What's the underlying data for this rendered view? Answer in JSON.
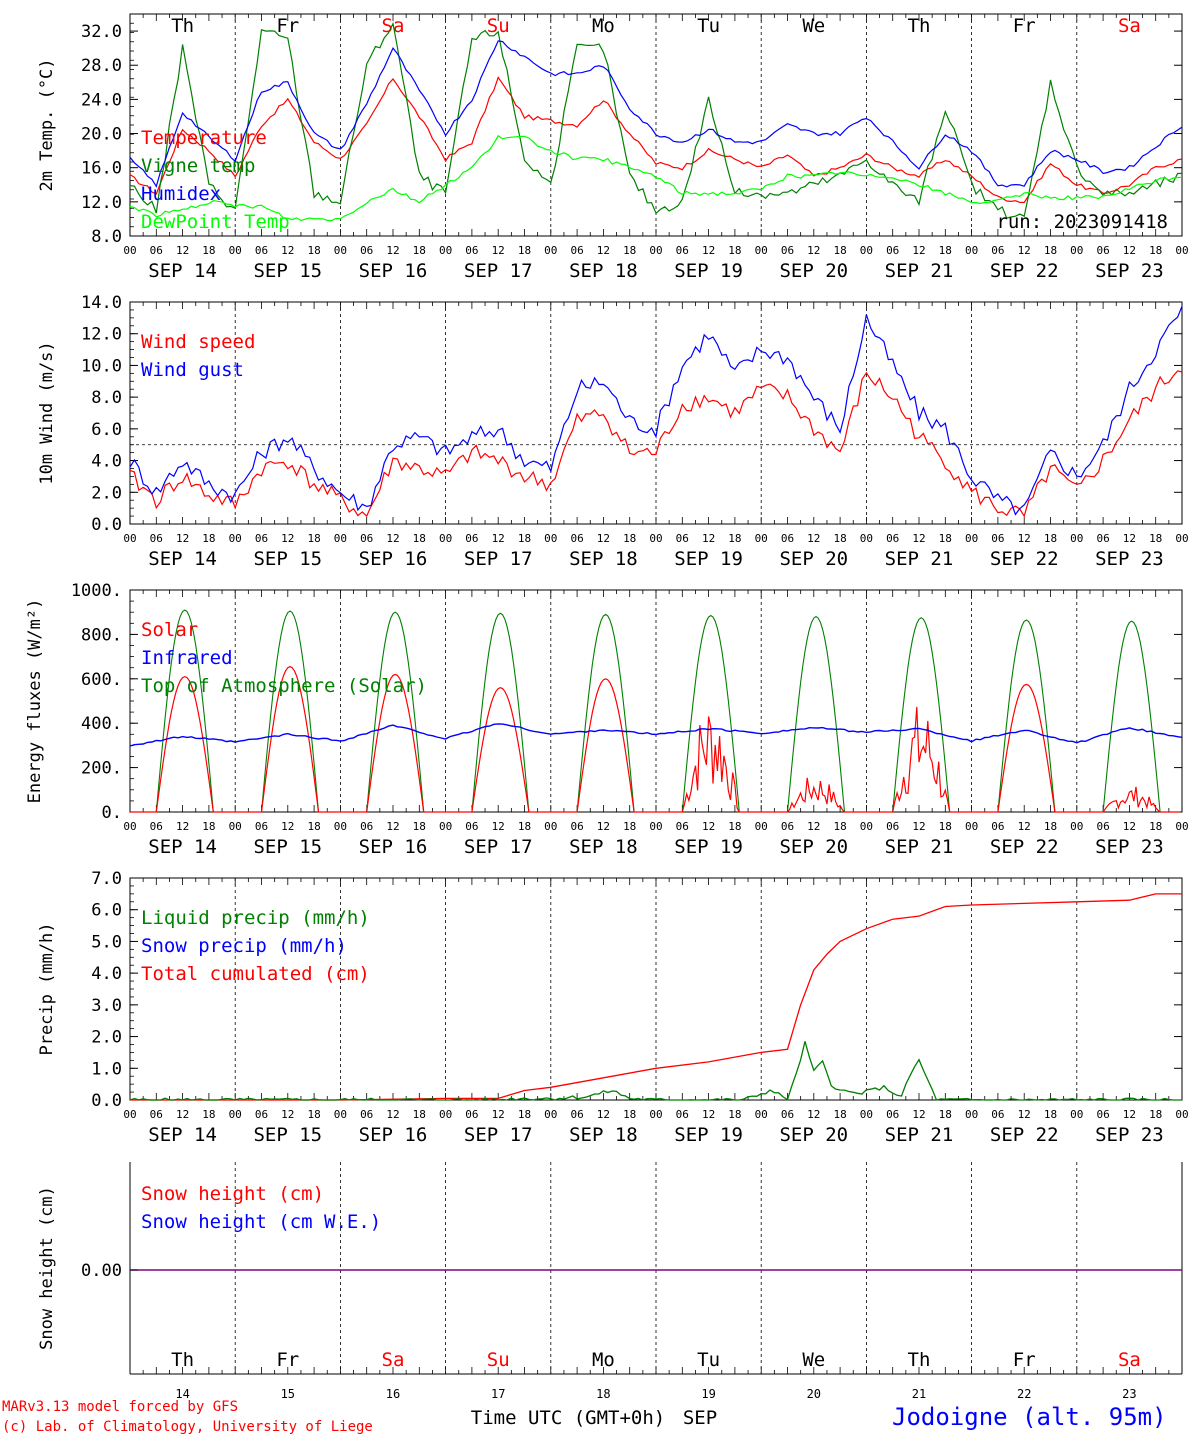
{
  "chart_data": [
    {
      "type": "line",
      "ylabel": "2m Temp. (°C)",
      "ylim": [
        8,
        34
      ],
      "ytick_labels": [
        "8.0",
        "12.0",
        "16.0",
        "20.0",
        "24.0",
        "28.0",
        "32.0"
      ],
      "run_label": "run: 2023091418",
      "legend": [
        {
          "name": "Temperature",
          "color": "#ff0000"
        },
        {
          "name": "Vigne temp",
          "color": "#008000"
        },
        {
          "name": "Humidex",
          "color": "#0000ff"
        },
        {
          "name": "DewPoint Temp",
          "color": "#00ff00"
        }
      ],
      "x_hours": [
        0,
        6,
        12,
        18,
        24,
        30,
        36,
        42,
        48,
        54,
        60,
        66,
        72,
        78,
        84,
        90,
        96,
        102,
        108,
        114,
        120,
        126,
        132,
        138,
        144,
        150,
        156,
        162,
        168,
        174,
        180,
        186,
        192,
        198,
        204,
        210,
        216,
        222,
        228,
        234,
        240
      ],
      "series": [
        {
          "name": "Temperature",
          "color": "#ff0000",
          "values": [
            15,
            13,
            20.5,
            18,
            15,
            21,
            24,
            19,
            17,
            21,
            26.5,
            22,
            17,
            19,
            26.5,
            22,
            21.5,
            21,
            24,
            20,
            16.5,
            16,
            18,
            17,
            16,
            17.5,
            15,
            16,
            17.5,
            16,
            15,
            17,
            15,
            12.5,
            12,
            16.5,
            14,
            13,
            14,
            16,
            17
          ]
        },
        {
          "name": "Vigne temp",
          "color": "#008000",
          "values": [
            14,
            11,
            30,
            14,
            11,
            32,
            31,
            13,
            12,
            28,
            33,
            15,
            13,
            31,
            32,
            17,
            14,
            30,
            30,
            15,
            11,
            12,
            24,
            13,
            13,
            13,
            14,
            15,
            17,
            14,
            12,
            23,
            14,
            11,
            10,
            26,
            16,
            13,
            13,
            14,
            15
          ]
        },
        {
          "name": "Humidex",
          "color": "#0000ff",
          "values": [
            17,
            14,
            22.5,
            19.5,
            17,
            25,
            26,
            20,
            18,
            23.5,
            30,
            25,
            20,
            24,
            31,
            29,
            27,
            27,
            28,
            23,
            20,
            19,
            20.5,
            19,
            19,
            21,
            20,
            20,
            22,
            19,
            16,
            20,
            18,
            14,
            14,
            18,
            17,
            15.5,
            16,
            18.5,
            21
          ]
        },
        {
          "name": "DewPoint Temp",
          "color": "#00ff00",
          "values": [
            11.5,
            10.5,
            11,
            12,
            11.5,
            11.5,
            10,
            10,
            10,
            12,
            13.5,
            12,
            14,
            16,
            19.5,
            19.5,
            18,
            17,
            17,
            16,
            15,
            13,
            13,
            13,
            13.5,
            15,
            15,
            15.5,
            15,
            15,
            14,
            13,
            12,
            12,
            13,
            12.5,
            12.5,
            12.5,
            13.5,
            14.5,
            15
          ]
        }
      ]
    },
    {
      "type": "line",
      "ylabel": "10m Wind (m/s)",
      "ylim": [
        0,
        14
      ],
      "ytick_labels": [
        "0.0",
        "2.0",
        "4.0",
        "6.0",
        "8.0",
        "10.0",
        "12.0",
        "14.0"
      ],
      "reference_line": 5,
      "legend": [
        {
          "name": "Wind speed",
          "color": "#ff0000"
        },
        {
          "name": "Wind gust",
          "color": "#0000ff"
        }
      ],
      "x_hours": [
        0,
        6,
        12,
        18,
        24,
        30,
        36,
        42,
        48,
        54,
        60,
        66,
        72,
        78,
        84,
        90,
        96,
        102,
        108,
        114,
        120,
        126,
        132,
        138,
        144,
        150,
        156,
        162,
        168,
        174,
        180,
        186,
        192,
        198,
        204,
        210,
        216,
        222,
        228,
        234,
        240
      ],
      "series": [
        {
          "name": "Wind speed",
          "color": "#ff0000",
          "values": [
            3,
            1.5,
            3,
            1.8,
            1.2,
            3.5,
            4,
            2.5,
            1.5,
            0.5,
            4,
            3.5,
            3,
            4.5,
            4,
            3,
            2.5,
            6.5,
            7,
            4.5,
            4.5,
            7.5,
            8,
            7,
            8.5,
            8,
            6,
            4.5,
            9.5,
            8,
            5.5,
            4,
            2,
            1,
            0.5,
            3.5,
            2,
            4,
            6.5,
            8.5,
            10
          ]
        },
        {
          "name": "Wind gust",
          "color": "#0000ff",
          "values": [
            4,
            2,
            4,
            2.5,
            1.8,
            4.5,
            5.5,
            3.5,
            2,
            1,
            5,
            5.5,
            4.5,
            5.5,
            6,
            4,
            3.5,
            8.5,
            9,
            6.5,
            6,
            10,
            12,
            9.5,
            11,
            10.5,
            8,
            6,
            13,
            10,
            7,
            6,
            3,
            1.5,
            0.8,
            4.5,
            3,
            5,
            8.5,
            11,
            13.5
          ]
        }
      ]
    },
    {
      "type": "line",
      "ylabel": "Energy fluxes (W/m²)",
      "ylim": [
        0,
        1000
      ],
      "ytick_labels": [
        "0.",
        "200.",
        "400.",
        "600.",
        "800.",
        "1000."
      ],
      "legend": [
        {
          "name": "Solar",
          "color": "#ff0000"
        },
        {
          "name": "Infrared",
          "color": "#0000ff"
        },
        {
          "name": "Top of Atmosphere (Solar)",
          "color": "#008000"
        }
      ],
      "diurnal": {
        "days": [
          "SEP 14",
          "SEP 15",
          "SEP 16",
          "SEP 17",
          "SEP 18",
          "SEP 19",
          "SEP 20",
          "SEP 21",
          "SEP 22",
          "SEP 23"
        ],
        "toa_peak": [
          910,
          905,
          900,
          895,
          890,
          885,
          880,
          875,
          865,
          860
        ],
        "solar_peak": [
          610,
          655,
          620,
          560,
          600,
          480,
          160,
          460,
          575,
          110
        ],
        "sunrise_hour": 6,
        "sunset_hour": 19
      },
      "infrared": {
        "x_hours": [
          0,
          12,
          24,
          36,
          48,
          60,
          72,
          84,
          96,
          108,
          120,
          132,
          144,
          156,
          168,
          180,
          192,
          204,
          216,
          228,
          240
        ],
        "values": [
          300,
          340,
          315,
          350,
          320,
          390,
          330,
          400,
          350,
          370,
          350,
          375,
          355,
          380,
          360,
          375,
          320,
          370,
          310,
          380,
          335
        ]
      }
    },
    {
      "type": "line",
      "ylabel": "Precip (mm/h)",
      "ylim": [
        0,
        7
      ],
      "ytick_labels": [
        "0.0",
        "1.0",
        "2.0",
        "3.0",
        "4.0",
        "5.0",
        "6.0",
        "7.0"
      ],
      "legend": [
        {
          "name": "Liquid precip (mm/h)",
          "color": "#008000"
        },
        {
          "name": "Snow precip (mm/h)",
          "color": "#0000ff"
        },
        {
          "name": "Total cumulated (cm)",
          "color": "#ff0000"
        }
      ],
      "series": [
        {
          "name": "Total cumulated (cm)",
          "color": "#ff0000",
          "x_hours": [
            0,
            48,
            72,
            84,
            90,
            96,
            108,
            120,
            132,
            144,
            150,
            153,
            156,
            159,
            162,
            168,
            174,
            180,
            186,
            192,
            204,
            216,
            228,
            234,
            240
          ],
          "values": [
            0,
            0,
            0.05,
            0.05,
            0.3,
            0.4,
            0.7,
            1.0,
            1.2,
            1.5,
            1.6,
            3.0,
            4.1,
            4.6,
            5.0,
            5.4,
            5.7,
            5.8,
            6.1,
            6.15,
            6.2,
            6.25,
            6.3,
            6.5,
            6.5
          ]
        },
        {
          "name": "Liquid precip (mm/h)",
          "color": "#008000",
          "x_hours": [
            0,
            84,
            88,
            96,
            104,
            110,
            114,
            120,
            140,
            146,
            150,
            152,
            154,
            156,
            158,
            160,
            162,
            166,
            172,
            176,
            178,
            180,
            184,
            240
          ],
          "values": [
            0,
            0,
            0.05,
            0.05,
            0.1,
            0.3,
            0.05,
            0,
            0,
            0.3,
            0.05,
            0.8,
            1.8,
            0.9,
            1.2,
            0.5,
            0.3,
            0.2,
            0.4,
            0.1,
            0.8,
            1.25,
            0,
            0
          ]
        }
      ]
    },
    {
      "type": "line",
      "ylabel": "Snow height (cm)",
      "ytick_labels": [
        "0.00"
      ],
      "legend": [
        {
          "name": "Snow height (cm)",
          "color": "#ff0000"
        },
        {
          "name": "Snow height (cm W.E.)",
          "color": "#0000ff"
        }
      ],
      "series": [
        {
          "name": "Snow height (cm)",
          "color": "#ff0000",
          "values": [
            0,
            0
          ]
        },
        {
          "name": "Snow height (cm W.E.)",
          "color": "#0000ff",
          "values": [
            0,
            0
          ]
        }
      ]
    }
  ],
  "x_axis": {
    "hour_ticks": [
      "00",
      "06",
      "12",
      "18"
    ],
    "end_tick": "00",
    "date_labels": [
      "SEP 14",
      "SEP 15",
      "SEP 16",
      "SEP 17",
      "SEP 18",
      "SEP 19",
      "SEP 20",
      "SEP 21",
      "SEP 22",
      "SEP 23"
    ],
    "weekdays": [
      "Th",
      "Fr",
      "Sa",
      "Su",
      "Mo",
      "Tu",
      "We",
      "Th",
      "Fr",
      "Sa"
    ],
    "weekday_colors": [
      "#000000",
      "#000000",
      "#ff0000",
      "#ff0000",
      "#000000",
      "#000000",
      "#000000",
      "#000000",
      "#000000",
      "#ff0000"
    ],
    "day_numbers": [
      "14",
      "15",
      "16",
      "17",
      "18",
      "19",
      "20",
      "21",
      "22",
      "23"
    ],
    "xlabel": "Time UTC (GMT+0h)",
    "month": "SEP"
  },
  "footer": {
    "credit_line1": "MARv3.13 model forced by GFS",
    "credit_line2": "(c) Lab. of Climatology, University of Liege",
    "station": "Jodoigne (alt. 95m)",
    "credit_color": "#ff0000",
    "station_color": "#0000ff"
  }
}
